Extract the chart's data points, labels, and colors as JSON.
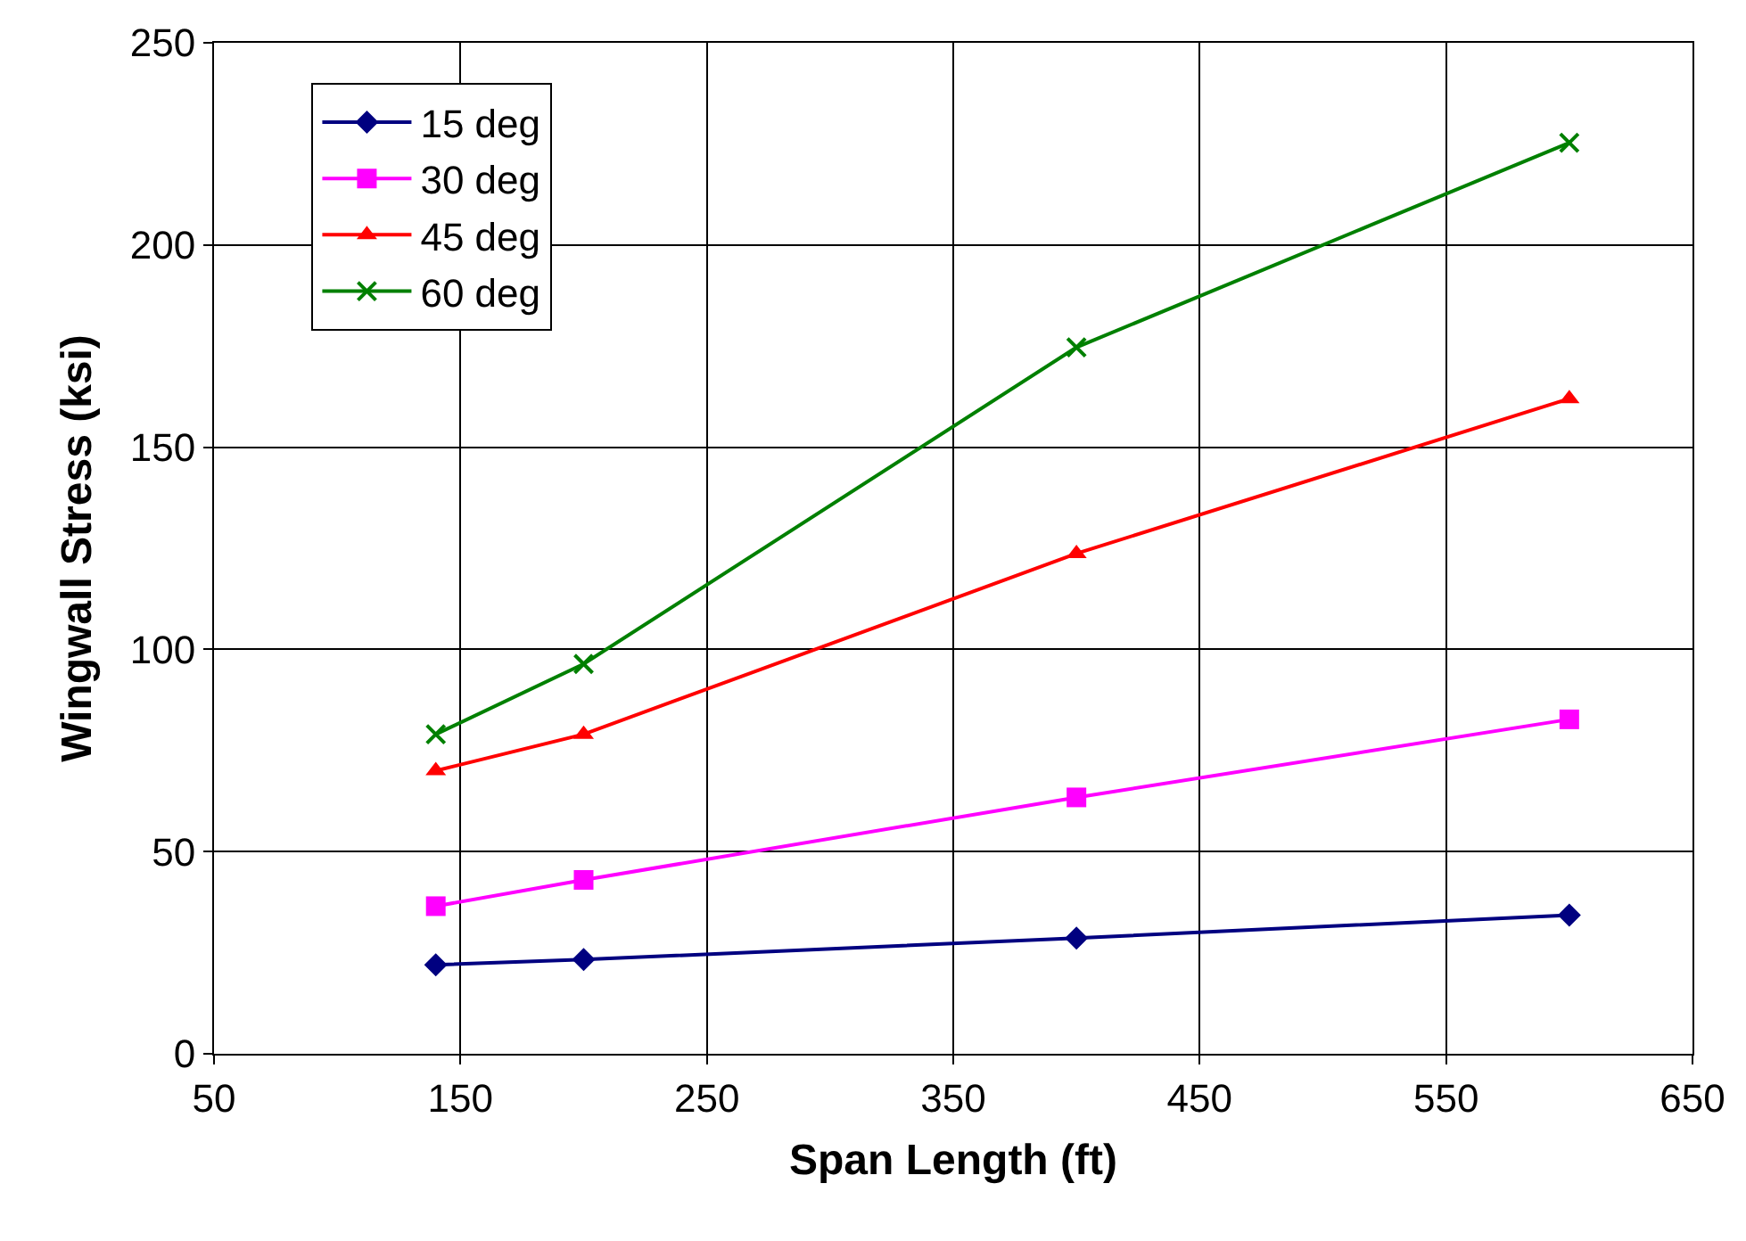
{
  "chart_data": {
    "type": "line",
    "xlabel": "Span Length (ft)",
    "ylabel": "Wingwall Stress (ksi)",
    "x": [
      140,
      200,
      400,
      600
    ],
    "series": [
      {
        "name": "15 deg",
        "color": "#000080",
        "marker": "diamond",
        "values": [
          22,
          23.3,
          28.6,
          34.3
        ]
      },
      {
        "name": "30 deg",
        "color": "#ff00ff",
        "marker": "square",
        "values": [
          36.5,
          43,
          63.4,
          82.7
        ]
      },
      {
        "name": "45 deg",
        "color": "#ff0000",
        "marker": "triangle",
        "values": [
          70,
          79,
          123.7,
          162
        ]
      },
      {
        "name": "60 deg",
        "color": "#008000",
        "marker": "cross",
        "values": [
          79,
          96.4,
          174.7,
          225.3
        ]
      }
    ],
    "xlim": [
      50,
      650
    ],
    "xticks": [
      50,
      150,
      250,
      350,
      450,
      550,
      650
    ],
    "ylim": [
      0,
      250
    ],
    "yticks": [
      0,
      50,
      100,
      150,
      200,
      250
    ],
    "grid": true,
    "legend": "top left",
    "line_style": "solid"
  }
}
